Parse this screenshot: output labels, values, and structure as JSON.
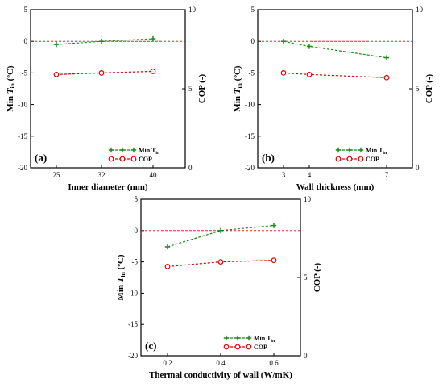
{
  "chart_data": [
    {
      "type": "line",
      "panel": "(a)",
      "xlabel": "Inner diameter (mm)",
      "ylabel_left": "Min T_in (ºC)",
      "ylabel_right": "COP (-)",
      "x": [
        25,
        32,
        40
      ],
      "x_ticks": [
        25,
        32,
        40
      ],
      "xlim": [
        21,
        45
      ],
      "ylim_left": [
        -20,
        5
      ],
      "ylim_right": [
        0,
        10
      ],
      "y_ticks_left": [
        5,
        0,
        -5,
        -10,
        -15,
        -20
      ],
      "y_ticks_right": [
        10,
        5,
        0
      ],
      "reference_line_y": 0,
      "legend": [
        "Min T_in",
        "COP"
      ],
      "series": [
        {
          "name": "Min T_in",
          "axis": "left",
          "values": [
            -0.5,
            0.0,
            0.4
          ]
        },
        {
          "name": "COP",
          "axis": "right",
          "values": [
            5.9,
            6.0,
            6.1
          ]
        }
      ]
    },
    {
      "type": "line",
      "panel": "(b)",
      "xlabel": "Wall thickness (mm)",
      "ylabel_left": "Min T_in (ºC)",
      "ylabel_right": "COP (-)",
      "x": [
        3,
        4,
        7
      ],
      "x_ticks": [
        3,
        4,
        7
      ],
      "xlim": [
        2,
        8
      ],
      "ylim_left": [
        -20,
        5
      ],
      "ylim_right": [
        0,
        10
      ],
      "y_ticks_left": [
        5,
        0,
        -5,
        -10,
        -15,
        -20
      ],
      "y_ticks_right": [
        10,
        5,
        0
      ],
      "reference_line_y": 0,
      "legend": [
        "Min T_in",
        "COP"
      ],
      "series": [
        {
          "name": "Min T_in",
          "axis": "left",
          "values": [
            0.0,
            -0.8,
            -2.6
          ]
        },
        {
          "name": "COP",
          "axis": "right",
          "values": [
            6.0,
            5.9,
            5.7
          ]
        }
      ]
    },
    {
      "type": "line",
      "panel": "(c)",
      "xlabel": "Thermal conductivity of wall (W/mK)",
      "ylabel_left": "Min T_in (ºC)",
      "ylabel_right": "COP (-)",
      "x": [
        0.2,
        0.4,
        0.6
      ],
      "x_ticks": [
        0.2,
        0.4,
        0.6
      ],
      "xlim": [
        0.1,
        0.7
      ],
      "ylim_left": [
        -20,
        5
      ],
      "ylim_right": [
        0,
        10
      ],
      "y_ticks_left": [
        5,
        0,
        -5,
        -10,
        -15,
        -20
      ],
      "y_ticks_right": [
        10,
        5,
        0
      ],
      "reference_line_y": 0,
      "legend": [
        "Min T_in",
        "COP"
      ],
      "series": [
        {
          "name": "Min T_in",
          "axis": "left",
          "values": [
            -2.6,
            0.0,
            0.8
          ]
        },
        {
          "name": "COP",
          "axis": "right",
          "values": [
            5.7,
            6.0,
            6.1
          ]
        }
      ]
    }
  ],
  "colors": {
    "min_tin": "#1a8a1a",
    "cop": "#e00000",
    "reference": "#e00000"
  }
}
